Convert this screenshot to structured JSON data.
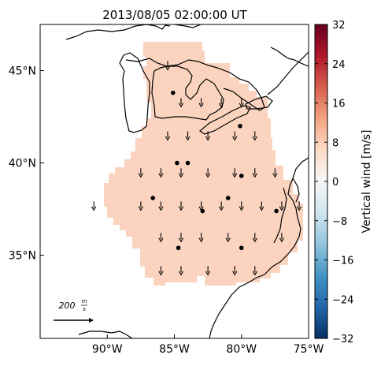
{
  "chart_data": {
    "type": "map",
    "title": "2013/08/05 02:00:00 UT",
    "map": {
      "lon_range": [
        -95,
        -75
      ],
      "lat_range": [
        30.5,
        47.5
      ],
      "lon_ticks": [
        {
          "value": -90,
          "label": "90°W"
        },
        {
          "value": -85,
          "label": "85°W"
        },
        {
          "value": -80,
          "label": "80°W"
        },
        {
          "value": -75,
          "label": "75°W"
        }
      ],
      "lat_ticks": [
        {
          "value": 35,
          "label": "35°N"
        },
        {
          "value": 40,
          "label": "40°N"
        },
        {
          "value": 45,
          "label": "45°N"
        }
      ],
      "field_value": 4.5,
      "field_color": "#fbd3bf",
      "coastline_color": "#000000"
    },
    "vectors": {
      "direction": "down",
      "reference_label_main": "200",
      "reference_label_unit_num": "m",
      "reference_label_unit_den": "s",
      "grid": [
        {
          "lon": -85.5,
          "lat": 45.3
        },
        {
          "lon": -84.5,
          "lat": 43.3
        },
        {
          "lon": -83,
          "lat": 43.3
        },
        {
          "lon": -81.5,
          "lat": 43.3
        },
        {
          "lon": -80,
          "lat": 43.3
        },
        {
          "lon": -85.5,
          "lat": 41.5
        },
        {
          "lon": -84,
          "lat": 41.5
        },
        {
          "lon": -82.5,
          "lat": 41.5
        },
        {
          "lon": -80.5,
          "lat": 41.5
        },
        {
          "lon": -79,
          "lat": 41.5
        },
        {
          "lon": -87.5,
          "lat": 39.5
        },
        {
          "lon": -86,
          "lat": 39.5
        },
        {
          "lon": -84.5,
          "lat": 39.5
        },
        {
          "lon": -82.5,
          "lat": 39.5
        },
        {
          "lon": -80.5,
          "lat": 39.5
        },
        {
          "lon": -79,
          "lat": 39.5
        },
        {
          "lon": -77.5,
          "lat": 39.5
        },
        {
          "lon": -91,
          "lat": 37.7
        },
        {
          "lon": -87.5,
          "lat": 37.7
        },
        {
          "lon": -86,
          "lat": 37.7
        },
        {
          "lon": -84.5,
          "lat": 37.7
        },
        {
          "lon": -83,
          "lat": 37.7
        },
        {
          "lon": -81.5,
          "lat": 37.7
        },
        {
          "lon": -80,
          "lat": 37.7
        },
        {
          "lon": -78.5,
          "lat": 37.7
        },
        {
          "lon": -77,
          "lat": 37.7
        },
        {
          "lon": -75.7,
          "lat": 37.7
        },
        {
          "lon": -86,
          "lat": 36
        },
        {
          "lon": -84.5,
          "lat": 36
        },
        {
          "lon": -83,
          "lat": 36
        },
        {
          "lon": -81,
          "lat": 36
        },
        {
          "lon": -79,
          "lat": 36
        },
        {
          "lon": -77,
          "lat": 36
        },
        {
          "lon": -86,
          "lat": 34.2
        },
        {
          "lon": -84.5,
          "lat": 34.2
        },
        {
          "lon": -82.5,
          "lat": 34.2
        },
        {
          "lon": -80.5,
          "lat": 34.2
        },
        {
          "lon": -79,
          "lat": 34.2
        }
      ]
    },
    "stations": [
      {
        "lon": -85.1,
        "lat": 43.8
      },
      {
        "lon": -80.1,
        "lat": 42.0
      },
      {
        "lon": -84.8,
        "lat": 40.0
      },
      {
        "lon": -84.0,
        "lat": 40.0
      },
      {
        "lon": -80.0,
        "lat": 39.3
      },
      {
        "lon": -86.6,
        "lat": 38.1
      },
      {
        "lon": -81.0,
        "lat": 38.1
      },
      {
        "lon": -82.9,
        "lat": 37.4
      },
      {
        "lon": -77.4,
        "lat": 37.4
      },
      {
        "lon": -84.7,
        "lat": 35.4
      },
      {
        "lon": -80.0,
        "lat": 35.4
      }
    ],
    "colorbar": {
      "label": "Vertical wind [m/s]",
      "min": -32,
      "max": 32,
      "ticks": [
        32,
        24,
        16,
        8,
        0,
        -8,
        -16,
        -24,
        -32
      ],
      "tick_labels": [
        "32",
        "24",
        "16",
        "8",
        "0",
        "−8",
        "−16",
        "−24",
        "−32"
      ],
      "colormap": [
        "#053061",
        "#2166ac",
        "#4393c3",
        "#92c5de",
        "#d1e5f0",
        "#f7f7f7",
        "#fddbc7",
        "#f4a582",
        "#d6604d",
        "#b2182b",
        "#67001f"
      ]
    }
  }
}
